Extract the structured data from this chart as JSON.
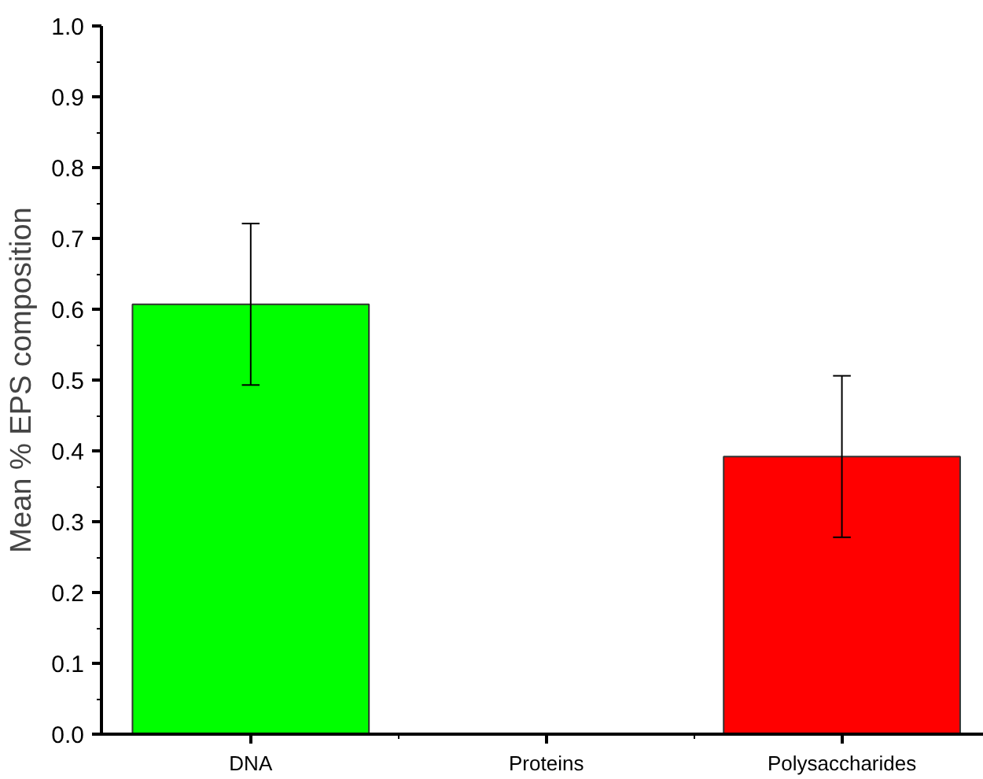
{
  "chart_data": {
    "type": "bar",
    "ylabel": "Mean % EPS composition",
    "categories": [
      "DNA",
      "Proteins",
      "Polysaccharides"
    ],
    "values": [
      0.607,
      0,
      0.392
    ],
    "colors": [
      "#00ff00",
      "#333333",
      "#ff0000"
    ],
    "errors": [
      0.114,
      null,
      0.114
    ],
    "ylim": [
      0,
      1.0
    ],
    "yticks": [
      {
        "value": 0,
        "label": "0.0"
      },
      0.1,
      0.2,
      0.3,
      0.4,
      0.5,
      0.6,
      0.7,
      0.8,
      0.9,
      {
        "value": 1,
        "label": "1.0"
      }
    ],
    "grid": false
  }
}
